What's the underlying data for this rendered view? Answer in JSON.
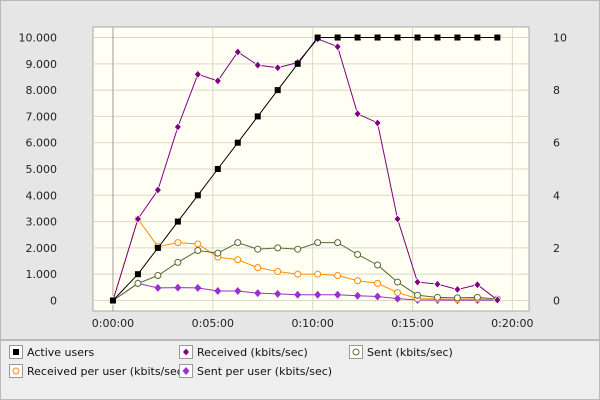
{
  "chart_data": {
    "type": "line",
    "x_tick_labels": [
      "0:00:00",
      "0:05:00",
      "0:10:00",
      "0:15:00",
      "0:20:00"
    ],
    "x_tick_values": [
      0,
      300,
      600,
      900,
      1200
    ],
    "xlim": [
      -60,
      1250
    ],
    "y_left_ticks": [
      "0",
      "1.000",
      "2.000",
      "3.000",
      "4.000",
      "5.000",
      "6.000",
      "7.000",
      "8.000",
      "9.000",
      "10.000"
    ],
    "y_left_tick_values": [
      0,
      1000,
      2000,
      3000,
      4000,
      5000,
      6000,
      7000,
      8000,
      9000,
      10000
    ],
    "y_left_lim": [
      -400,
      10400
    ],
    "y_right_ticks": [
      "0",
      "2",
      "4",
      "6",
      "8",
      "10"
    ],
    "y_right_tick_values": [
      0,
      2,
      4,
      6,
      8,
      10
    ],
    "y_right_lim": [
      -0.4,
      10.4
    ],
    "grid": true,
    "x": [
      0,
      75,
      135,
      195,
      255,
      315,
      375,
      435,
      495,
      555,
      615,
      675,
      735,
      795,
      855,
      915,
      975,
      1035,
      1095,
      1155
    ],
    "series": [
      {
        "name": "Active users",
        "axis": "right",
        "color": "#000000",
        "marker": "square-filled",
        "values": [
          0,
          1,
          2,
          3,
          4,
          5,
          6,
          7,
          8,
          9,
          10,
          10,
          10,
          10,
          10,
          10,
          10,
          10,
          10,
          10
        ]
      },
      {
        "name": "Received (kbits/sec)",
        "axis": "left",
        "color": "#800080",
        "marker": "diamond-filled-outline",
        "values": [
          0,
          3100,
          4200,
          6600,
          8600,
          8350,
          9450,
          8950,
          8850,
          9050,
          9950,
          9650,
          7100,
          6750,
          3100,
          700,
          620,
          420,
          600,
          20
        ]
      },
      {
        "name": "Sent (kbits/sec)",
        "axis": "left",
        "color": "#556b2f",
        "marker": "circle-open",
        "values": [
          0,
          650,
          950,
          1450,
          1900,
          1800,
          2200,
          1950,
          2000,
          1950,
          2200,
          2200,
          1750,
          1350,
          700,
          200,
          120,
          100,
          120,
          50
        ]
      },
      {
        "name": "Received per user (kbits/sec)",
        "axis": "left",
        "color": "#ff8c00",
        "marker": "circle-open",
        "values": [
          0,
          3100,
          2050,
          2200,
          2150,
          1650,
          1550,
          1250,
          1100,
          1000,
          1000,
          950,
          750,
          650,
          300,
          70,
          60,
          40,
          60,
          20
        ]
      },
      {
        "name": "Sent per user (kbits/sec)",
        "axis": "left",
        "color": "#9932cc",
        "marker": "diamond-filled",
        "values": [
          0,
          650,
          480,
          490,
          480,
          360,
          360,
          280,
          250,
          220,
          220,
          220,
          180,
          150,
          70,
          20,
          12,
          10,
          12,
          5
        ]
      }
    ]
  },
  "legend": {
    "items": [
      {
        "label": "Active users",
        "color": "#000000",
        "marker": "square-filled"
      },
      {
        "label": "Received (kbits/sec)",
        "color": "#800080",
        "marker": "diamond-filled-outline"
      },
      {
        "label": "Sent (kbits/sec)",
        "color": "#556b2f",
        "marker": "circle-open"
      },
      {
        "label": "Received per user (kbits/sec)",
        "color": "#ff8c00",
        "marker": "circle-open"
      },
      {
        "label": "Sent per user (kbits/sec)",
        "color": "#9932cc",
        "marker": "diamond-filled"
      }
    ]
  }
}
